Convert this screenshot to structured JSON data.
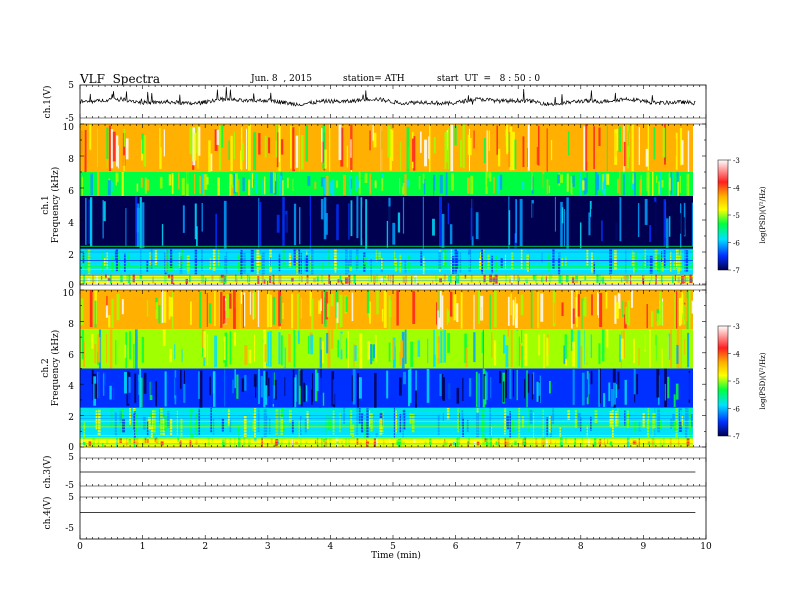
{
  "header": {
    "title": "VLF  Spectra",
    "date": "Jun. 8  , 2015",
    "station": "station= ATH",
    "start": "start  UT  =   8 : 50 : 0"
  },
  "axes": {
    "xlabel": "Time  (min)",
    "xticks": [
      "0",
      "1",
      "2",
      "3",
      "4",
      "5",
      "6",
      "7",
      "8",
      "9",
      "10"
    ],
    "ch1_ylabel": "ch.1(V)",
    "ch1_yticks": [
      "5",
      "-5"
    ],
    "spec1_ylabel_a": "ch.1",
    "spec1_ylabel_b": "Frequency  (kHz)",
    "spec2_ylabel_a": "ch.2",
    "spec2_ylabel_b": "Frequency  (kHz)",
    "spec_yticks": [
      "10",
      "8",
      "6",
      "4",
      "2",
      "0"
    ],
    "ch3_ylabel": "ch.3(V)",
    "ch3_yticks": [
      "5",
      "-5"
    ],
    "ch4_ylabel": "ch.4(V)",
    "ch4_yticks": [
      "5",
      "-5"
    ]
  },
  "colorbar": {
    "label": "log(PSD)(V²/Hz)",
    "ticks": [
      "-3",
      "-4",
      "-5",
      "-6",
      "-7"
    ],
    "stops": [
      "#ffffff",
      "#ff0000",
      "#ffb000",
      "#ffff00",
      "#00ff40",
      "#00e0ff",
      "#0020ff",
      "#000060"
    ]
  },
  "chart_data": [
    {
      "type": "line",
      "title": "ch.1 waveform",
      "xlabel": "Time (min)",
      "ylabel": "ch.1(V)",
      "xlim": [
        0,
        10
      ],
      "ylim": [
        -5,
        5
      ],
      "x_data_end_min": 9.83,
      "series": [
        {
          "mean_level_v": 0.0,
          "typical_band_v": [
            -1.0,
            1.0
          ],
          "max_spike_v": 3.0
        }
      ]
    },
    {
      "type": "heatmap",
      "title": "ch.1 spectrogram",
      "xlabel": "Time (min)",
      "ylabel": "Frequency (kHz)",
      "xlim": [
        0,
        10
      ],
      "ylim": [
        0,
        10
      ],
      "color_scale": "log(PSD)(V²/Hz)",
      "clim": [
        -7,
        -3
      ],
      "frequency_bands_kHz": [
        {
          "range": [
            0.0,
            0.6
          ],
          "typical_logpsd": -4.5
        },
        {
          "range": [
            0.6,
            2.2
          ],
          "typical_logpsd": -5.5
        },
        {
          "range": [
            2.2,
            5.5
          ],
          "typical_logpsd": -6.8
        },
        {
          "range": [
            5.5,
            7.0
          ],
          "typical_logpsd": -5.2
        },
        {
          "range": [
            7.0,
            10.0
          ],
          "typical_logpsd": -4.2
        }
      ]
    },
    {
      "type": "heatmap",
      "title": "ch.2 spectrogram",
      "xlabel": "Time (min)",
      "ylabel": "Frequency (kHz)",
      "xlim": [
        0,
        10
      ],
      "ylim": [
        0,
        10
      ],
      "color_scale": "log(PSD)(V²/Hz)",
      "clim": [
        -7,
        -3
      ],
      "frequency_bands_kHz": [
        {
          "range": [
            0.0,
            0.6
          ],
          "typical_logpsd": -4.5
        },
        {
          "range": [
            0.6,
            2.5
          ],
          "typical_logpsd": -5.5
        },
        {
          "range": [
            2.5,
            5.0
          ],
          "typical_logpsd": -6.3
        },
        {
          "range": [
            5.0,
            7.5
          ],
          "typical_logpsd": -5.0
        },
        {
          "range": [
            7.5,
            10.0
          ],
          "typical_logpsd": -4.2
        }
      ]
    },
    {
      "type": "line",
      "title": "ch.3 waveform",
      "xlabel": "Time (min)",
      "ylabel": "ch.3(V)",
      "xlim": [
        0,
        10
      ],
      "ylim": [
        -5,
        5
      ],
      "series": [
        {
          "mean_level_v": 0.0
        }
      ]
    },
    {
      "type": "line",
      "title": "ch.4 waveform",
      "xlabel": "Time (min)",
      "ylabel": "ch.4(V)",
      "xlim": [
        0,
        10
      ],
      "ylim": [
        -5,
        5
      ],
      "series": [
        {
          "mean_level_v": 0.0
        }
      ]
    }
  ]
}
